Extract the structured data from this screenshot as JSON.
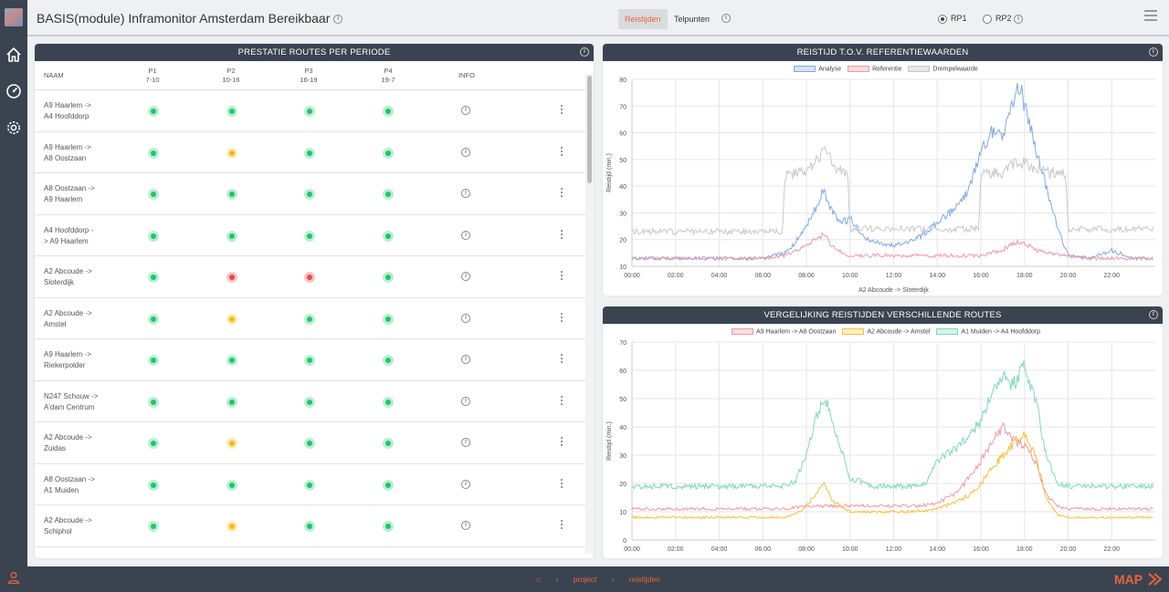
{
  "header": {
    "title": "BASIS(module) Inframonitor Amsterdam Bereikbaar",
    "tabs": [
      {
        "label": "Reistijden",
        "active": true
      },
      {
        "label": "Telpunten",
        "active": false
      }
    ],
    "radios": [
      {
        "label": "RP1",
        "checked": true
      },
      {
        "label": "RP2",
        "checked": false
      }
    ]
  },
  "routes_panel": {
    "title": "PRESTATIE ROUTES PER PERIODE",
    "columns": {
      "name": "NAAM",
      "info": "INFO",
      "periods": [
        {
          "label": "P1",
          "range": "7-10"
        },
        {
          "label": "P2",
          "range": "10-16"
        },
        {
          "label": "P3",
          "range": "16-19"
        },
        {
          "label": "P4",
          "range": "19-7"
        }
      ]
    },
    "rows": [
      {
        "l1": "A9 Haarlem ->",
        "l2": "A4 Hoofddorp",
        "status": [
          "green",
          "green",
          "green",
          "green"
        ]
      },
      {
        "l1": "A9 Haarlem ->",
        "l2": "A8 Oostzaan",
        "status": [
          "green",
          "yellow",
          "green",
          "green"
        ]
      },
      {
        "l1": "A8 Oostzaan ->",
        "l2": "A9 Haarlem",
        "status": [
          "green",
          "green",
          "green",
          "green"
        ]
      },
      {
        "l1": "A4 Hoofddorp -",
        "l2": "> A9 Haarlem",
        "status": [
          "green",
          "green",
          "green",
          "green"
        ]
      },
      {
        "l1": "A2 Abcoude ->",
        "l2": "Sloterdijk",
        "status": [
          "green",
          "red",
          "red",
          "green"
        ]
      },
      {
        "l1": "A2 Abcoude ->",
        "l2": "Amstel",
        "status": [
          "green",
          "yellow",
          "green",
          "green"
        ]
      },
      {
        "l1": "A9 Haarlem ->",
        "l2": "Riekerpolder",
        "status": [
          "green",
          "green",
          "green",
          "green"
        ]
      },
      {
        "l1": "N247 Schouw ->",
        "l2": "A'dam Centrum",
        "status": [
          "green",
          "green",
          "green",
          "green"
        ]
      },
      {
        "l1": "A2 Abcoude ->",
        "l2": "Zuidas",
        "status": [
          "green",
          "yellow",
          "green",
          "green"
        ]
      },
      {
        "l1": "A8 Oostzaan ->",
        "l2": "A1 Muiden",
        "status": [
          "green",
          "green",
          "green",
          "green"
        ]
      },
      {
        "l1": "A2 Abcoude ->",
        "l2": "Schiphol",
        "status": [
          "green",
          "yellow",
          "green",
          "green"
        ]
      }
    ]
  },
  "colors": {
    "green": "#22c46b",
    "yellow": "#f3b81a",
    "red": "#e84a4a",
    "accent": "#e8643c",
    "dark": "#3a4450"
  },
  "chart_data": [
    {
      "type": "line",
      "title": "REISTIJD T.O.V. REFERENTIEWAARDEN",
      "xlabel": "A2 Abcoude -> Sloterdijk",
      "ylabel": "Reistijd (min.)",
      "ylim": [
        10,
        80
      ],
      "yticks": [
        10,
        20,
        30,
        40,
        50,
        60,
        70,
        80
      ],
      "xticks": [
        "00:00",
        "02:00",
        "04:00",
        "06:00",
        "08:00",
        "10:00",
        "12:00",
        "14:00",
        "16:00",
        "18:00",
        "20:00",
        "22:00"
      ],
      "legend_position": "top",
      "series": [
        {
          "name": "Analyse",
          "color": "#7eaae6",
          "fill": "#d6e2f4",
          "points": [
            [
              0,
              13
            ],
            [
              1,
              13
            ],
            [
              2,
              13
            ],
            [
              3,
              13
            ],
            [
              4,
              13
            ],
            [
              5,
              13
            ],
            [
              6,
              13
            ],
            [
              7,
              15
            ],
            [
              7.5,
              19
            ],
            [
              8,
              25
            ],
            [
              8.5,
              33
            ],
            [
              8.8,
              39
            ],
            [
              9,
              33
            ],
            [
              9.5,
              26
            ],
            [
              10,
              28
            ],
            [
              10.5,
              22
            ],
            [
              11,
              19
            ],
            [
              12,
              18
            ],
            [
              13,
              20
            ],
            [
              14,
              26
            ],
            [
              15,
              33
            ],
            [
              15.5,
              40
            ],
            [
              16,
              53
            ],
            [
              16.5,
              60
            ],
            [
              17,
              59
            ],
            [
              17.5,
              72
            ],
            [
              17.8,
              78
            ],
            [
              18,
              70
            ],
            [
              18.5,
              55
            ],
            [
              19,
              40
            ],
            [
              19.5,
              25
            ],
            [
              20,
              14
            ],
            [
              21,
              13
            ],
            [
              22,
              16
            ],
            [
              23,
              13
            ],
            [
              23.9,
              13
            ]
          ]
        },
        {
          "name": "Referentie",
          "color": "#ee9aa6",
          "fill": "#f7dde1",
          "points": [
            [
              0,
              13
            ],
            [
              1,
              13
            ],
            [
              2,
              13
            ],
            [
              3,
              13
            ],
            [
              4,
              13
            ],
            [
              5,
              13
            ],
            [
              6,
              13
            ],
            [
              7,
              14
            ],
            [
              8,
              18
            ],
            [
              8.8,
              22
            ],
            [
              9.2,
              17
            ],
            [
              10,
              14
            ],
            [
              12,
              14
            ],
            [
              14,
              14
            ],
            [
              15,
              14
            ],
            [
              16,
              14
            ],
            [
              17,
              16
            ],
            [
              17.5,
              19
            ],
            [
              18,
              19
            ],
            [
              18.5,
              16
            ],
            [
              19,
              15
            ],
            [
              20,
              14
            ],
            [
              21,
              13
            ],
            [
              22,
              13
            ],
            [
              23.9,
              13
            ]
          ]
        },
        {
          "name": "Drempelwaarde",
          "color": "#c9c9cc",
          "fill": "#e6e6e8",
          "points": [
            [
              0,
              23
            ],
            [
              1,
              23
            ],
            [
              2,
              23
            ],
            [
              3,
              23
            ],
            [
              4,
              23
            ],
            [
              5,
              23
            ],
            [
              6,
              23
            ],
            [
              6.9,
              23
            ],
            [
              7,
              44
            ],
            [
              8,
              45
            ],
            [
              8.5,
              50
            ],
            [
              8.9,
              53
            ],
            [
              9.3,
              47
            ],
            [
              9.9,
              44
            ],
            [
              10,
              24
            ],
            [
              12,
              24
            ],
            [
              14,
              24
            ],
            [
              15,
              24
            ],
            [
              15.9,
              24
            ],
            [
              16,
              45
            ],
            [
              17,
              45
            ],
            [
              17.5,
              48
            ],
            [
              18,
              49
            ],
            [
              18.5,
              47
            ],
            [
              19,
              45
            ],
            [
              19.9,
              45
            ],
            [
              20,
              24
            ],
            [
              21,
              24
            ],
            [
              22,
              24
            ],
            [
              23.9,
              24
            ]
          ]
        }
      ]
    },
    {
      "type": "line",
      "title": "VERGELIJKING REISTIJDEN VERSCHILLENDE ROUTES",
      "xlabel": "",
      "ylabel": "Reistijd (min.)",
      "ylim": [
        0,
        70
      ],
      "yticks": [
        0,
        10,
        20,
        30,
        40,
        50,
        60,
        70
      ],
      "xticks": [
        "00:00",
        "02:00",
        "04:00",
        "06:00",
        "08:00",
        "10:00",
        "12:00",
        "14:00",
        "16:00",
        "18:00",
        "20:00",
        "22:00"
      ],
      "legend_position": "top",
      "series": [
        {
          "name": "A9 Haarlem -> A8 Oostzaan",
          "color": "#ee9aa6",
          "fill": "#f7dde1",
          "points": [
            [
              0,
              11
            ],
            [
              2,
              11
            ],
            [
              4,
              11
            ],
            [
              6,
              11
            ],
            [
              7,
              11
            ],
            [
              8,
              12
            ],
            [
              9,
              12
            ],
            [
              10,
              12
            ],
            [
              12,
              12
            ],
            [
              13,
              12
            ],
            [
              14,
              13
            ],
            [
              15,
              17
            ],
            [
              15.5,
              23
            ],
            [
              16,
              28
            ],
            [
              16.5,
              35
            ],
            [
              17,
              40
            ],
            [
              17.5,
              35
            ],
            [
              18,
              33
            ],
            [
              18.5,
              28
            ],
            [
              19,
              16
            ],
            [
              19.5,
              12
            ],
            [
              20,
              11
            ],
            [
              22,
              11
            ],
            [
              23.9,
              11
            ]
          ]
        },
        {
          "name": "A2 Abcoude -> Amstel",
          "color": "#f3c33c",
          "fill": "#fbefc8",
          "points": [
            [
              0,
              8
            ],
            [
              2,
              8
            ],
            [
              4,
              8
            ],
            [
              6,
              8
            ],
            [
              7,
              8
            ],
            [
              7.5,
              9
            ],
            [
              8,
              12
            ],
            [
              8.5,
              17
            ],
            [
              8.8,
              20
            ],
            [
              9.2,
              14
            ],
            [
              10,
              10
            ],
            [
              11,
              10
            ],
            [
              12,
              10
            ],
            [
              13,
              10
            ],
            [
              14,
              11
            ],
            [
              15,
              14
            ],
            [
              15.5,
              16
            ],
            [
              16,
              20
            ],
            [
              16.5,
              25
            ],
            [
              17,
              30
            ],
            [
              17.5,
              34
            ],
            [
              18,
              38
            ],
            [
              18.5,
              30
            ],
            [
              19,
              15
            ],
            [
              19.5,
              9
            ],
            [
              20,
              8
            ],
            [
              22,
              8
            ],
            [
              23.9,
              8
            ]
          ]
        },
        {
          "name": "A1 Muiden -> A4 Hoofddorp",
          "color": "#7fd9b7",
          "fill": "#d6f3e8",
          "points": [
            [
              0,
              19
            ],
            [
              2,
              19
            ],
            [
              4,
              19
            ],
            [
              6,
              19
            ],
            [
              7,
              19
            ],
            [
              7.5,
              21
            ],
            [
              8,
              30
            ],
            [
              8.5,
              44
            ],
            [
              8.8,
              50
            ],
            [
              9,
              47
            ],
            [
              9.5,
              35
            ],
            [
              10,
              22
            ],
            [
              11,
              19
            ],
            [
              12,
              19
            ],
            [
              13,
              19
            ],
            [
              13.5,
              20
            ],
            [
              14,
              28
            ],
            [
              15,
              33
            ],
            [
              15.5,
              38
            ],
            [
              16,
              42
            ],
            [
              16.5,
              52
            ],
            [
              17,
              58
            ],
            [
              17.5,
              55
            ],
            [
              18,
              61
            ],
            [
              18.5,
              50
            ],
            [
              19,
              30
            ],
            [
              19.5,
              20
            ],
            [
              20,
              19
            ],
            [
              22,
              19
            ],
            [
              23.9,
              19
            ]
          ]
        }
      ]
    }
  ],
  "breadcrumb": {
    "items": [
      "project",
      "reistijden"
    ]
  },
  "brand": "MAP"
}
